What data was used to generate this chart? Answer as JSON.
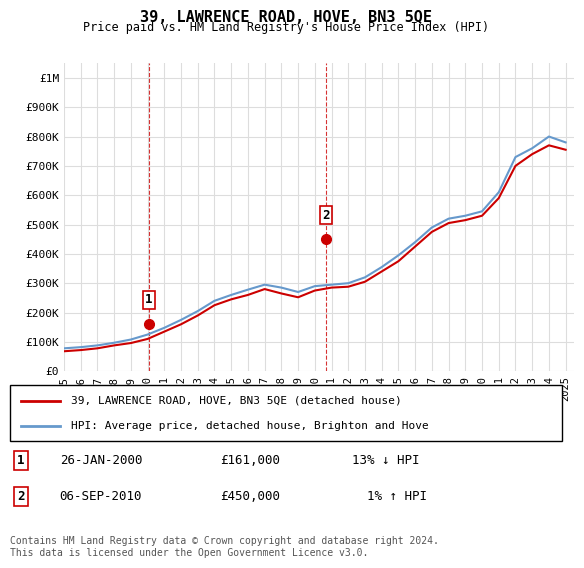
{
  "title": "39, LAWRENCE ROAD, HOVE, BN3 5QE",
  "subtitle": "Price paid vs. HM Land Registry's House Price Index (HPI)",
  "ylabel_ticks": [
    "£0",
    "£100K",
    "£200K",
    "£300K",
    "£400K",
    "£500K",
    "£600K",
    "£700K",
    "£800K",
    "£900K",
    "£1M"
  ],
  "ytick_values": [
    0,
    100000,
    200000,
    300000,
    400000,
    500000,
    600000,
    700000,
    800000,
    900000,
    1000000
  ],
  "ylim": [
    0,
    1050000
  ],
  "xlim_start": 1995.0,
  "xlim_end": 2025.5,
  "red_line_color": "#cc0000",
  "blue_line_color": "#6699cc",
  "grid_color": "#dddddd",
  "marker1_x": 2000.07,
  "marker1_y": 161000,
  "marker2_x": 2010.67,
  "marker2_y": 450000,
  "marker1_label": "1",
  "marker2_label": "2",
  "vline1_x": 2000.07,
  "vline2_x": 2010.67,
  "legend_label_red": "39, LAWRENCE ROAD, HOVE, BN3 5QE (detached house)",
  "legend_label_blue": "HPI: Average price, detached house, Brighton and Hove",
  "table_row1": "1    26-JAN-2000         £161,000         13% ↓ HPI",
  "table_row2": "2    06-SEP-2010         £450,000           1% ↑ HPI",
  "footnote": "Contains HM Land Registry data © Crown copyright and database right 2024.\nThis data is licensed under the Open Government Licence v3.0.",
  "hpi_years": [
    1995,
    1996,
    1997,
    1998,
    1999,
    2000,
    2001,
    2002,
    2003,
    2004,
    2005,
    2006,
    2007,
    2008,
    2009,
    2010,
    2011,
    2012,
    2013,
    2014,
    2015,
    2016,
    2017,
    2018,
    2019,
    2020,
    2021,
    2022,
    2023,
    2024,
    2025
  ],
  "hpi_values": [
    78000,
    82000,
    88000,
    97000,
    108000,
    125000,
    148000,
    175000,
    205000,
    240000,
    260000,
    278000,
    295000,
    285000,
    270000,
    290000,
    295000,
    300000,
    320000,
    355000,
    395000,
    440000,
    490000,
    520000,
    530000,
    545000,
    610000,
    730000,
    760000,
    800000,
    780000
  ],
  "price_years": [
    1995,
    1996,
    1997,
    1998,
    1999,
    2000,
    2001,
    2002,
    2003,
    2004,
    2005,
    2006,
    2007,
    2008,
    2009,
    2010,
    2011,
    2012,
    2013,
    2014,
    2015,
    2016,
    2017,
    2018,
    2019,
    2020,
    2021,
    2022,
    2023,
    2024,
    2025
  ],
  "price_values": [
    68000,
    72000,
    78000,
    88000,
    96000,
    110000,
    135000,
    160000,
    190000,
    225000,
    245000,
    260000,
    280000,
    265000,
    252000,
    275000,
    285000,
    288000,
    305000,
    340000,
    375000,
    425000,
    475000,
    505000,
    515000,
    530000,
    590000,
    700000,
    740000,
    770000,
    755000
  ],
  "xtick_years": [
    1995,
    1996,
    1997,
    1998,
    1999,
    2000,
    2001,
    2002,
    2003,
    2004,
    2005,
    2006,
    2007,
    2008,
    2009,
    2010,
    2011,
    2012,
    2013,
    2014,
    2015,
    2016,
    2017,
    2018,
    2019,
    2020,
    2021,
    2022,
    2023,
    2024,
    2025
  ]
}
